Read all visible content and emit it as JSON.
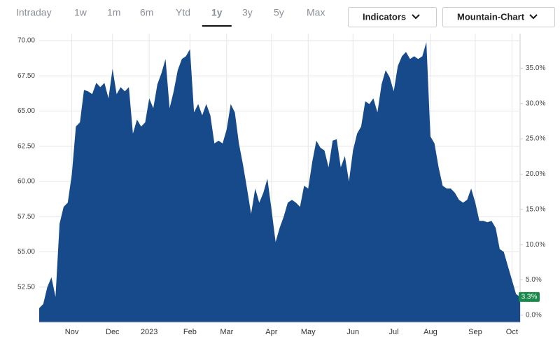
{
  "tabs": [
    {
      "label": "Intraday",
      "selected": false
    },
    {
      "label": "1w",
      "selected": false
    },
    {
      "label": "1m",
      "selected": false
    },
    {
      "label": "6m",
      "selected": false
    },
    {
      "label": "Ytd",
      "selected": false
    },
    {
      "label": "1y",
      "selected": true
    },
    {
      "label": "3y",
      "selected": false
    },
    {
      "label": "5y",
      "selected": false
    },
    {
      "label": "Max",
      "selected": false
    }
  ],
  "buttons": [
    "Indicators",
    "Mountain-Chart"
  ],
  "chart_data": {
    "type": "area",
    "color": "#174a8b",
    "grid": true,
    "categories": [
      null,
      null,
      null,
      null,
      null,
      null,
      null,
      null,
      "Nov",
      null,
      null,
      null,
      null,
      null,
      null,
      null,
      null,
      null,
      "Dec",
      null,
      null,
      null,
      null,
      null,
      null,
      null,
      null,
      "2023",
      null,
      null,
      null,
      null,
      null,
      null,
      null,
      null,
      null,
      "Feb",
      null,
      null,
      null,
      null,
      null,
      null,
      null,
      null,
      "Mar",
      null,
      null,
      null,
      null,
      null,
      null,
      null,
      null,
      null,
      null,
      "Apr",
      null,
      null,
      null,
      null,
      null,
      null,
      null,
      null,
      "May",
      null,
      null,
      null,
      null,
      null,
      null,
      null,
      null,
      null,
      null,
      "Jun",
      null,
      null,
      null,
      null,
      null,
      null,
      null,
      null,
      null,
      "Jul",
      null,
      null,
      null,
      null,
      null,
      null,
      null,
      null,
      "Aug",
      null,
      null,
      null,
      null,
      null,
      null,
      null,
      null,
      null,
      null,
      "Sep",
      null,
      null,
      null,
      null,
      null,
      null,
      null,
      null,
      "Oct",
      null,
      null
    ],
    "values": [
      51.0,
      51.3,
      52.5,
      53.2,
      51.8,
      57.0,
      58.2,
      58.5,
      60.5,
      63.9,
      64.2,
      66.5,
      66.4,
      66.2,
      67.0,
      66.7,
      67.0,
      65.9,
      68.0,
      66.2,
      66.7,
      66.4,
      66.7,
      63.4,
      64.4,
      63.9,
      64.2,
      65.9,
      65.2,
      66.9,
      67.7,
      68.7,
      65.2,
      66.4,
      67.9,
      68.7,
      68.9,
      69.4,
      64.9,
      65.5,
      64.7,
      65.5,
      64.7,
      62.7,
      62.9,
      62.7,
      63.7,
      65.5,
      64.9,
      62.7,
      61.2,
      59.5,
      57.7,
      59.5,
      58.5,
      59.2,
      60.2,
      58.0,
      55.7,
      56.7,
      57.5,
      58.5,
      58.7,
      58.5,
      58.2,
      59.7,
      59.5,
      61.4,
      62.9,
      62.4,
      62.2,
      61.0,
      62.9,
      63.0,
      61.0,
      61.8,
      60.0,
      62.2,
      63.4,
      63.9,
      65.7,
      65.5,
      65.9,
      64.9,
      66.9,
      67.9,
      67.4,
      66.4,
      68.2,
      68.9,
      69.2,
      68.7,
      68.9,
      68.7,
      68.9,
      69.9,
      63.2,
      62.7,
      61.0,
      59.7,
      59.5,
      59.5,
      59.2,
      58.7,
      58.5,
      58.7,
      59.5,
      58.5,
      57.2,
      57.2,
      57.1,
      57.2,
      56.7,
      55.2,
      55.0,
      54.0,
      53.0,
      52.0,
      51.8
    ],
    "ylim": [
      50,
      70.5
    ],
    "yticks": [
      {
        "value": 52.5,
        "label": "52.50"
      },
      {
        "value": 55,
        "label": "55.00"
      },
      {
        "value": 57.5,
        "label": "57.50"
      },
      {
        "value": 60,
        "label": "60.00"
      },
      {
        "value": 62.5,
        "label": "62.50"
      },
      {
        "value": 65,
        "label": "65.00"
      },
      {
        "value": 67.5,
        "label": "67.50"
      },
      {
        "value": 70,
        "label": "70.00"
      }
    ],
    "y2lim": [
      -1,
      39.9
    ],
    "y2ticks": [
      {
        "value": 0,
        "label": "0.0%"
      },
      {
        "value": 5,
        "label": "5.0%"
      },
      {
        "value": 10,
        "label": "10.0%"
      },
      {
        "value": 15,
        "label": "15.0%"
      },
      {
        "value": 20,
        "label": "20.0%"
      },
      {
        "value": 25,
        "label": "25.0%"
      },
      {
        "value": 30,
        "label": "30.0%"
      },
      {
        "value": 35,
        "label": "35.0%"
      }
    ],
    "last_change_label": "3.3%",
    "last_change_color": "#1a8a4a"
  }
}
